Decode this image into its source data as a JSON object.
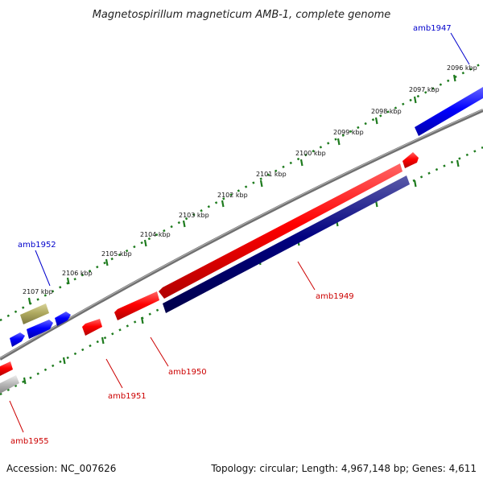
{
  "title": "Magnetospirillum magneticum AMB-1, complete genome",
  "footer": {
    "accession": "Accession: NC_007626",
    "summary": "Topology: circular; Length: 4,967,148 bp; Genes: 4,611"
  },
  "colors": {
    "forward_strand": "#0000ff",
    "reverse_strand": "#ff0000",
    "selected_gene": "#000080",
    "other_gene": "#b0aa60",
    "gray_gene": "#bbbbbb",
    "backbone": "#808080",
    "tick": "#1e7b1e",
    "label_forward": "#0000cc",
    "label_reverse": "#cc0000"
  },
  "scale_ticks": [
    "2096 kbp",
    "2097 kbp",
    "2098 kbp",
    "2099 kbp",
    "2100 kbp",
    "2101 kbp",
    "2102 kbp",
    "2103 kbp",
    "2104 kbp",
    "2105 kbp",
    "2106 kbp",
    "2107 kbp"
  ],
  "gene_labels": [
    {
      "name": "amb1947",
      "strand": "forward"
    },
    {
      "name": "amb1949",
      "strand": "reverse"
    },
    {
      "name": "amb1950",
      "strand": "reverse"
    },
    {
      "name": "amb1951",
      "strand": "reverse"
    },
    {
      "name": "amb1952",
      "strand": "forward"
    },
    {
      "name": "amb1955",
      "strand": "reverse"
    }
  ]
}
